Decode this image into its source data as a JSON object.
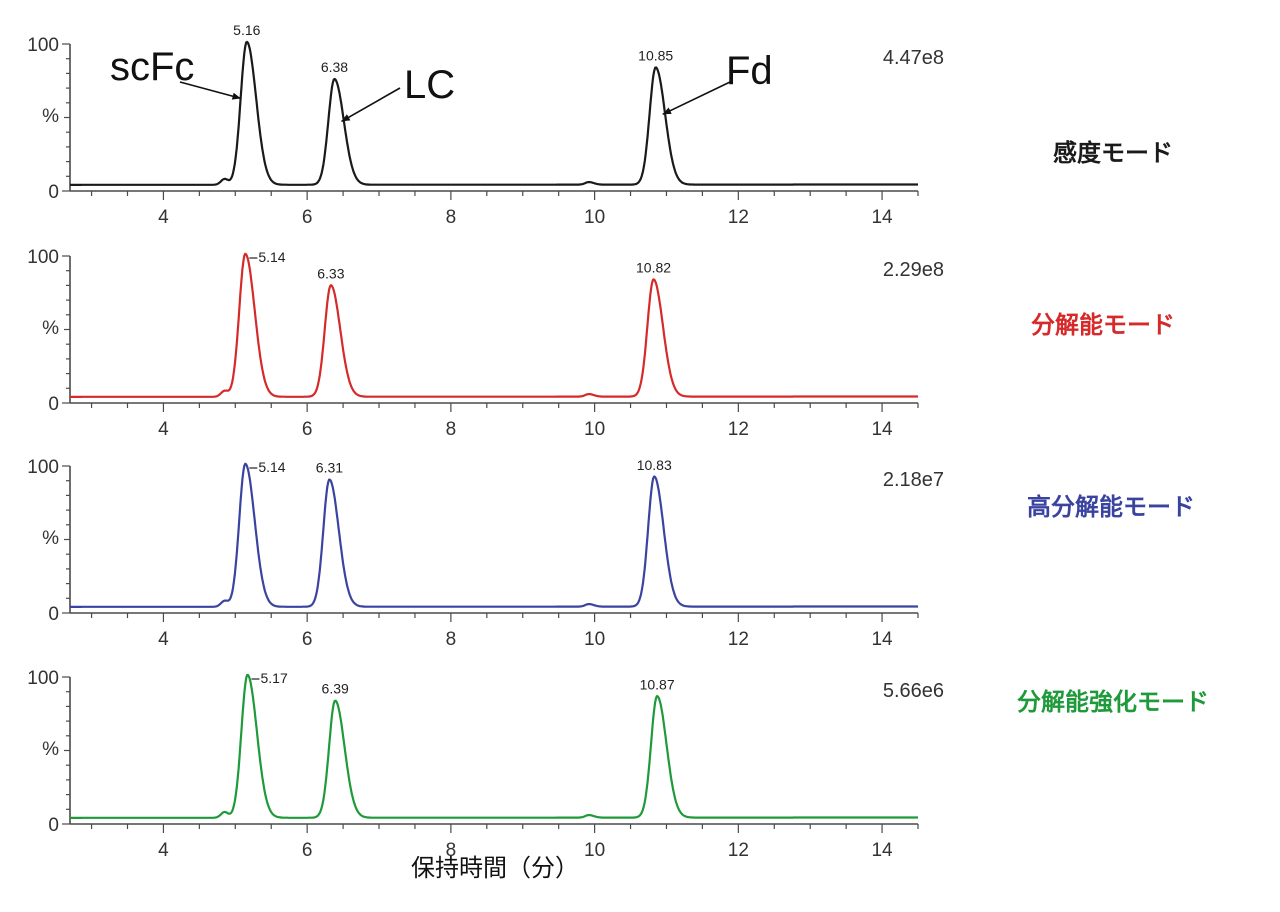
{
  "chart_data": [
    {
      "type": "line",
      "mode_label": "感度モード",
      "color": "#1a1a1a",
      "intensity": "4.47e8",
      "xlim": [
        2.7,
        14.5
      ],
      "ylim": [
        0,
        100
      ],
      "y_tick_labels": [
        "100",
        "%",
        "0"
      ],
      "x_ticks": [
        "4",
        "6",
        "8",
        "10",
        "12",
        "14"
      ],
      "peaks": [
        {
          "rt": 5.16,
          "height": 100,
          "label": "5.16"
        },
        {
          "rt": 6.38,
          "height": 74,
          "label": "6.38"
        },
        {
          "rt": 10.85,
          "height": 82,
          "label": "10.85"
        }
      ],
      "annotations": [
        {
          "text": "scFc",
          "peak_rt": 5.16
        },
        {
          "text": "LC",
          "peak_rt": 6.38
        },
        {
          "text": "Fd",
          "peak_rt": 10.85
        }
      ]
    },
    {
      "type": "line",
      "mode_label": "分解能モード",
      "color": "#d62a2a",
      "intensity": "2.29e8",
      "xlim": [
        2.7,
        14.5
      ],
      "ylim": [
        0,
        100
      ],
      "y_tick_labels": [
        "100",
        "%",
        "0"
      ],
      "x_ticks": [
        "4",
        "6",
        "8",
        "10",
        "12",
        "14"
      ],
      "peaks": [
        {
          "rt": 5.14,
          "height": 100,
          "label": "5.14"
        },
        {
          "rt": 6.33,
          "height": 78,
          "label": "6.33"
        },
        {
          "rt": 10.82,
          "height": 82,
          "label": "10.82"
        }
      ]
    },
    {
      "type": "line",
      "mode_label": "高分解能モード",
      "color": "#3a44a0",
      "intensity": "2.18e7",
      "xlim": [
        2.7,
        14.5
      ],
      "ylim": [
        0,
        100
      ],
      "y_tick_labels": [
        "100",
        "%",
        "0"
      ],
      "x_ticks": [
        "4",
        "6",
        "8",
        "10",
        "12",
        "14"
      ],
      "peaks": [
        {
          "rt": 5.14,
          "height": 100,
          "label": "5.14"
        },
        {
          "rt": 6.31,
          "height": 89,
          "label": "6.31"
        },
        {
          "rt": 10.83,
          "height": 91,
          "label": "10.83"
        }
      ]
    },
    {
      "type": "line",
      "mode_label": "分解能強化モード",
      "color": "#1f9a3a",
      "intensity": "5.66e6",
      "xlim": [
        2.7,
        14.5
      ],
      "ylim": [
        0,
        100
      ],
      "y_tick_labels": [
        "100",
        "%",
        "0"
      ],
      "x_ticks": [
        "4",
        "6",
        "8",
        "10",
        "12",
        "14"
      ],
      "peaks": [
        {
          "rt": 5.17,
          "height": 100,
          "label": "5.17"
        },
        {
          "rt": 6.39,
          "height": 82,
          "label": "6.39"
        },
        {
          "rt": 10.87,
          "height": 85,
          "label": "10.87"
        }
      ]
    }
  ],
  "x_axis_title": "保持時間（分）"
}
